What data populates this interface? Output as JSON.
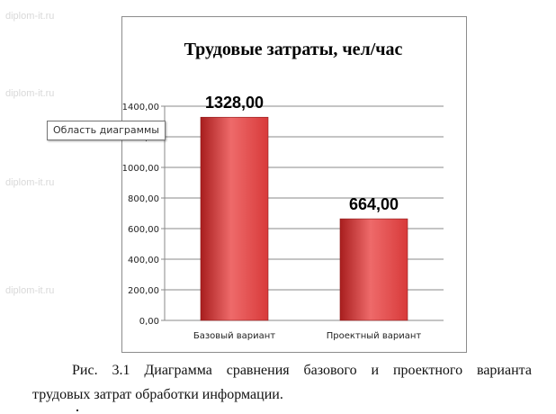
{
  "watermarks": [
    "diplom-it.ru",
    "diplom-it.ru",
    "diplom-it.ru",
    "diplom-it.ru"
  ],
  "tooltip": "Область диаграммы",
  "chart_data": {
    "type": "bar",
    "title": "Трудовые затраты, чел/час",
    "xlabel": "",
    "ylabel": "",
    "categories": [
      "Базовый вариант",
      "Проектный вариант"
    ],
    "values": [
      1328.0,
      664.0
    ],
    "data_labels": [
      "1328,00",
      "664,00"
    ],
    "ylim": [
      0,
      1400
    ],
    "yticks": [
      "0,00",
      "200,00",
      "400,00",
      "600,00",
      "800,00",
      "1000,00",
      "1200,00",
      "1400,00"
    ],
    "grid": true,
    "legend": "none",
    "bar_color": "#d83a3a",
    "bar_color_dark": "#a81e1e",
    "bar_color_light": "#ee6a6a"
  },
  "caption": {
    "line1_words": [
      "Рис.",
      "3.1",
      "Диаграмма",
      "сравнения",
      "базового",
      "и",
      "проектного",
      "варианта"
    ],
    "line2": "трудовых затрат обработки информации."
  }
}
